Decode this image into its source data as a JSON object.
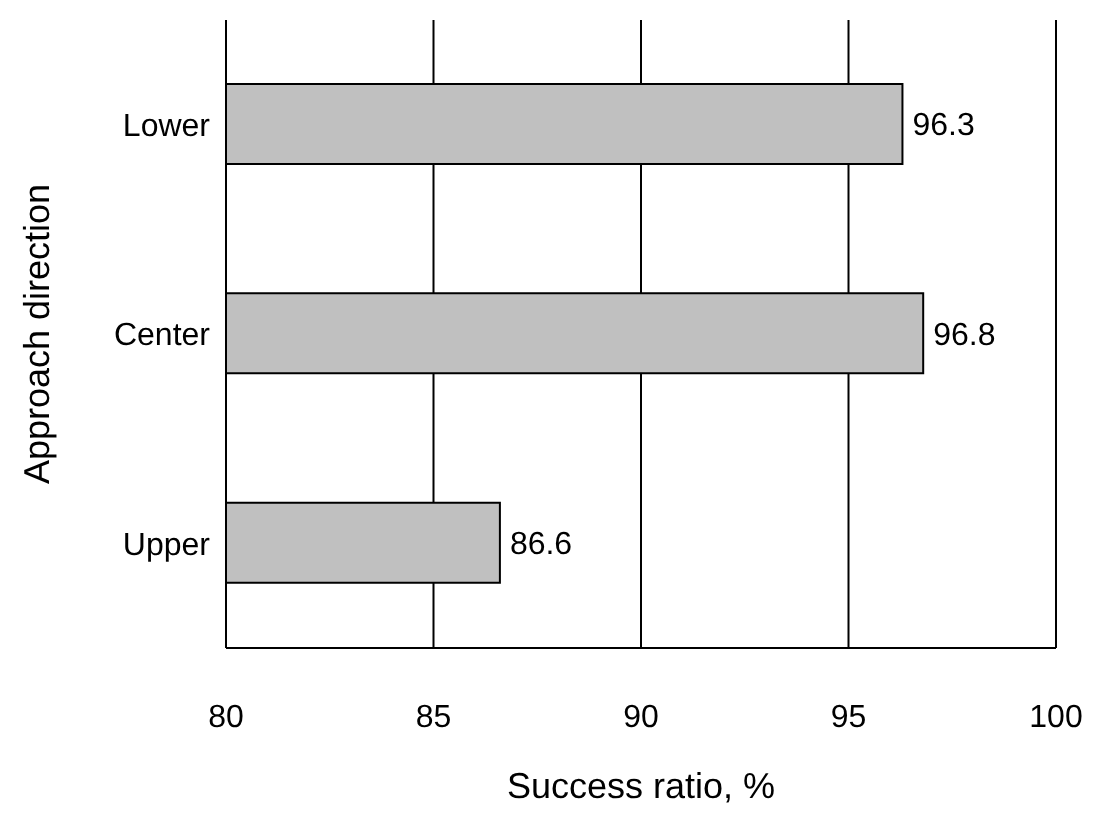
{
  "chart_data": {
    "type": "bar",
    "orientation": "horizontal",
    "xlabel": "Success ratio, %",
    "ylabel": "Approach direction",
    "categories": [
      "Lower",
      "Center",
      "Upper"
    ],
    "values": [
      96.3,
      96.8,
      86.6
    ],
    "color": "#c0c0c0",
    "xlim": [
      80,
      100
    ],
    "xticks": [
      80,
      85,
      90,
      95,
      100
    ],
    "grid": "x",
    "data_labels": true
  }
}
